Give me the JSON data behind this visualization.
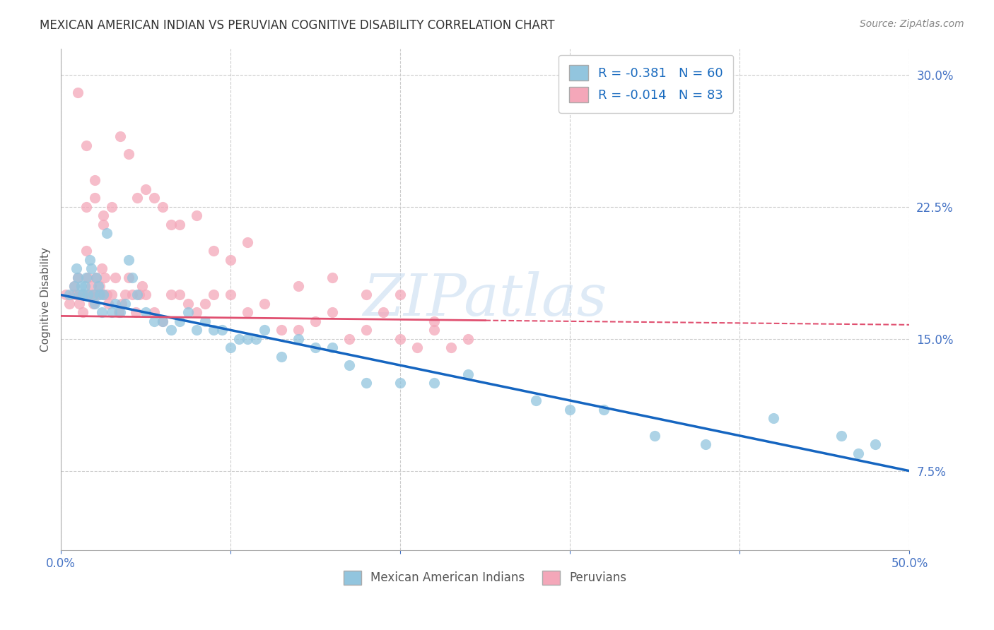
{
  "title": "MEXICAN AMERICAN INDIAN VS PERUVIAN COGNITIVE DISABILITY CORRELATION CHART",
  "source": "Source: ZipAtlas.com",
  "ylabel": "Cognitive Disability",
  "xlim": [
    0.0,
    0.5
  ],
  "ylim": [
    0.03,
    0.315
  ],
  "yticks": [
    0.075,
    0.15,
    0.225,
    0.3
  ],
  "yticklabels": [
    "7.5%",
    "15.0%",
    "22.5%",
    "30.0%"
  ],
  "xtick_positions": [
    0.0,
    0.1,
    0.2,
    0.3,
    0.4,
    0.5
  ],
  "legend_r1": "R = -0.381   N = 60",
  "legend_r2": "R = -0.014   N = 83",
  "color_blue": "#92C5DE",
  "color_pink": "#F4A7B9",
  "trend_blue_color": "#1565C0",
  "trend_pink_color": "#E05070",
  "background": "#ffffff",
  "grid_color": "#cccccc",
  "watermark": "ZIPatlas",
  "blue_trend_x0": 0.0,
  "blue_trend_y0": 0.175,
  "blue_trend_x1": 0.5,
  "blue_trend_y1": 0.075,
  "pink_trend_x0": 0.0,
  "pink_trend_y0": 0.163,
  "pink_trend_x1": 0.5,
  "pink_trend_y1": 0.158,
  "blue_scatter_x": [
    0.005,
    0.008,
    0.009,
    0.01,
    0.011,
    0.012,
    0.013,
    0.014,
    0.015,
    0.016,
    0.017,
    0.018,
    0.019,
    0.02,
    0.021,
    0.022,
    0.023,
    0.024,
    0.025,
    0.027,
    0.03,
    0.032,
    0.035,
    0.038,
    0.04,
    0.042,
    0.045,
    0.05,
    0.055,
    0.06,
    0.065,
    0.07,
    0.075,
    0.08,
    0.085,
    0.09,
    0.095,
    0.1,
    0.105,
    0.11,
    0.115,
    0.12,
    0.13,
    0.14,
    0.15,
    0.16,
    0.17,
    0.18,
    0.2,
    0.22,
    0.24,
    0.28,
    0.3,
    0.32,
    0.35,
    0.38,
    0.42,
    0.46,
    0.47,
    0.48
  ],
  "blue_scatter_y": [
    0.175,
    0.18,
    0.19,
    0.185,
    0.175,
    0.18,
    0.175,
    0.18,
    0.185,
    0.175,
    0.195,
    0.19,
    0.175,
    0.17,
    0.185,
    0.18,
    0.175,
    0.165,
    0.175,
    0.21,
    0.165,
    0.17,
    0.165,
    0.17,
    0.195,
    0.185,
    0.175,
    0.165,
    0.16,
    0.16,
    0.155,
    0.16,
    0.165,
    0.155,
    0.16,
    0.155,
    0.155,
    0.145,
    0.15,
    0.15,
    0.15,
    0.155,
    0.14,
    0.15,
    0.145,
    0.145,
    0.135,
    0.125,
    0.125,
    0.125,
    0.13,
    0.115,
    0.11,
    0.11,
    0.095,
    0.09,
    0.105,
    0.095,
    0.085,
    0.09
  ],
  "pink_scatter_x": [
    0.003,
    0.005,
    0.007,
    0.008,
    0.009,
    0.01,
    0.011,
    0.012,
    0.013,
    0.014,
    0.015,
    0.016,
    0.017,
    0.018,
    0.019,
    0.02,
    0.021,
    0.022,
    0.023,
    0.024,
    0.025,
    0.026,
    0.027,
    0.028,
    0.03,
    0.032,
    0.034,
    0.036,
    0.038,
    0.04,
    0.042,
    0.044,
    0.046,
    0.048,
    0.05,
    0.055,
    0.06,
    0.065,
    0.07,
    0.075,
    0.08,
    0.085,
    0.09,
    0.1,
    0.11,
    0.12,
    0.13,
    0.14,
    0.15,
    0.16,
    0.17,
    0.18,
    0.19,
    0.2,
    0.21,
    0.22,
    0.23,
    0.24,
    0.025,
    0.03,
    0.035,
    0.04,
    0.045,
    0.05,
    0.015,
    0.02,
    0.025,
    0.055,
    0.06,
    0.065,
    0.07,
    0.08,
    0.09,
    0.1,
    0.11,
    0.14,
    0.16,
    0.18,
    0.2,
    0.22,
    0.01,
    0.015,
    0.02
  ],
  "pink_scatter_y": [
    0.175,
    0.17,
    0.175,
    0.18,
    0.175,
    0.185,
    0.17,
    0.175,
    0.165,
    0.175,
    0.2,
    0.185,
    0.175,
    0.18,
    0.17,
    0.175,
    0.185,
    0.175,
    0.18,
    0.19,
    0.175,
    0.185,
    0.175,
    0.17,
    0.175,
    0.185,
    0.165,
    0.17,
    0.175,
    0.185,
    0.175,
    0.165,
    0.175,
    0.18,
    0.175,
    0.165,
    0.16,
    0.175,
    0.175,
    0.17,
    0.165,
    0.17,
    0.175,
    0.175,
    0.165,
    0.17,
    0.155,
    0.155,
    0.16,
    0.165,
    0.15,
    0.155,
    0.165,
    0.15,
    0.145,
    0.155,
    0.145,
    0.15,
    0.215,
    0.225,
    0.265,
    0.255,
    0.23,
    0.235,
    0.225,
    0.23,
    0.22,
    0.23,
    0.225,
    0.215,
    0.215,
    0.22,
    0.2,
    0.195,
    0.205,
    0.18,
    0.185,
    0.175,
    0.175,
    0.16,
    0.29,
    0.26,
    0.24
  ]
}
